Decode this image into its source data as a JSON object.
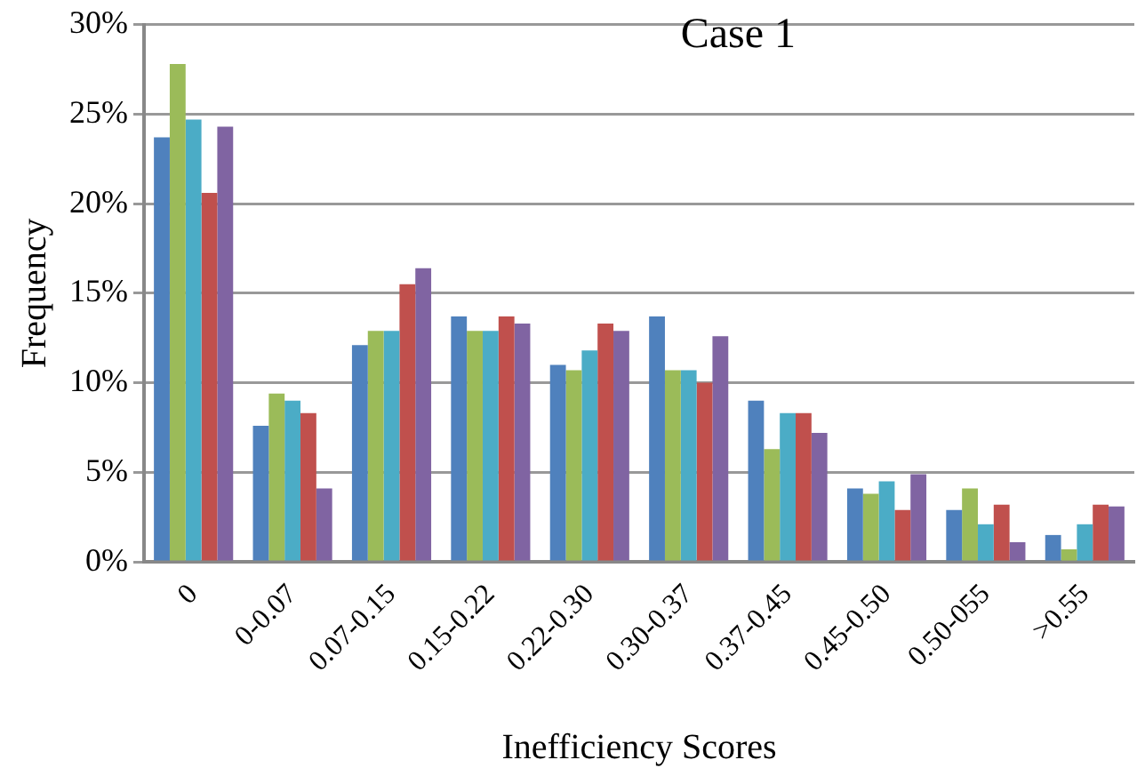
{
  "chart_data": {
    "type": "bar",
    "title": "Case 1",
    "xlabel": "Inefficiency Scores",
    "ylabel": "Frequency",
    "categories": [
      "0",
      "0-0.07",
      "0.07-0.15",
      "0.15-0.22",
      "0.22-0.30",
      "0.30-0.37",
      "0.37-0.45",
      "0.45-0.50",
      "0.50-055",
      ">0.55"
    ],
    "series": [
      {
        "color": "#4f81bd",
        "values": [
          23.7,
          7.6,
          12.1,
          13.7,
          11.0,
          13.7,
          9.0,
          4.1,
          2.9,
          1.5
        ]
      },
      {
        "color": "#9bbb59",
        "values": [
          27.8,
          9.4,
          12.9,
          12.9,
          10.7,
          10.7,
          6.3,
          3.8,
          4.1,
          0.7
        ]
      },
      {
        "color": "#4bacc6",
        "values": [
          24.7,
          9.0,
          12.9,
          12.9,
          11.8,
          10.7,
          8.3,
          4.5,
          2.1,
          2.1
        ]
      },
      {
        "color": "#c0504d",
        "values": [
          20.6,
          8.3,
          15.5,
          13.7,
          13.3,
          10.0,
          8.3,
          2.9,
          3.2,
          3.2
        ]
      },
      {
        "color": "#8064a2",
        "values": [
          24.3,
          4.1,
          16.4,
          13.3,
          12.9,
          12.6,
          7.2,
          4.9,
          1.1,
          3.1
        ]
      }
    ],
    "ylim": [
      0,
      30
    ],
    "yticks": [
      {
        "value": 0,
        "label": "0%"
      },
      {
        "value": 5,
        "label": "5%"
      },
      {
        "value": 10,
        "label": "10%"
      },
      {
        "value": 15,
        "label": "15%"
      },
      {
        "value": 20,
        "label": "20%"
      },
      {
        "value": 25,
        "label": "25%"
      },
      {
        "value": 30,
        "label": "30%"
      }
    ],
    "grid": "y",
    "legend": false
  }
}
